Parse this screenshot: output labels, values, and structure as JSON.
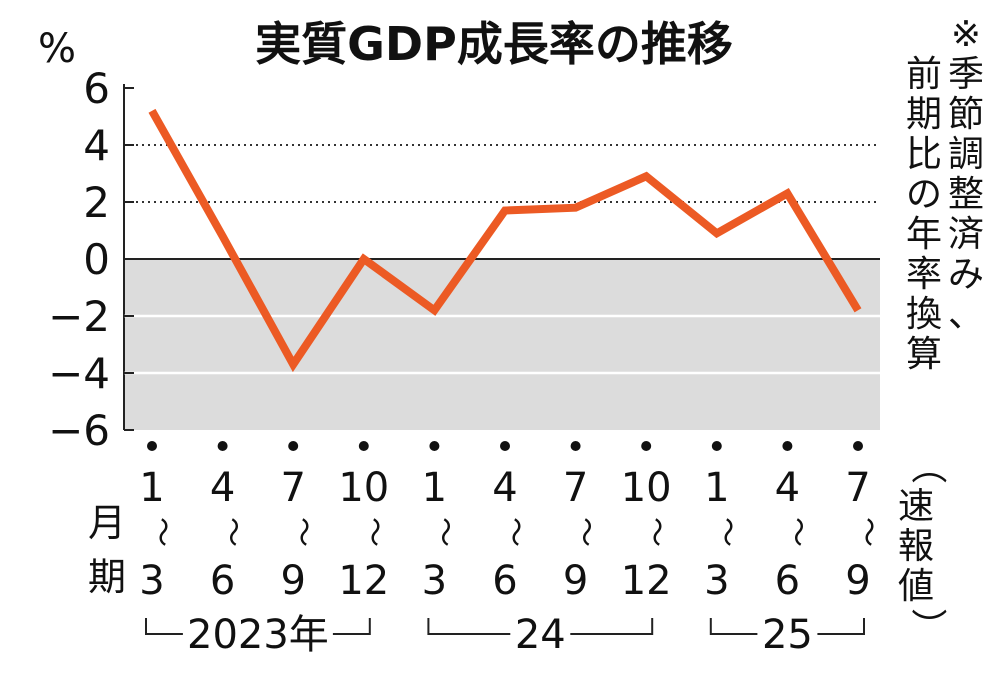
{
  "chart_data": {
    "type": "line",
    "title": "実質GDP成長率の推移",
    "unit_label": "%",
    "ylim": [
      -6,
      6
    ],
    "y_ticks": [
      "6",
      "4",
      "2",
      "0",
      "−2",
      "−4",
      "−6"
    ],
    "grid": "dotted lines at 2 and 4; solid lines at negative values; shaded area below 0",
    "x_axis_prefix": [
      "月",
      "期"
    ],
    "tilde": "～",
    "categories": [
      {
        "start": "1",
        "end": "3"
      },
      {
        "start": "4",
        "end": "6"
      },
      {
        "start": "7",
        "end": "9"
      },
      {
        "start": "10",
        "end": "12"
      },
      {
        "start": "1",
        "end": "3"
      },
      {
        "start": "4",
        "end": "6"
      },
      {
        "start": "7",
        "end": "9"
      },
      {
        "start": "10",
        "end": "12"
      },
      {
        "start": "1",
        "end": "3"
      },
      {
        "start": "4",
        "end": "6"
      },
      {
        "start": "7",
        "end": "9"
      }
    ],
    "year_groups": [
      {
        "label": "2023年",
        "from": 0,
        "to": 3
      },
      {
        "label": "24",
        "from": 4,
        "to": 7
      },
      {
        "label": "25",
        "from": 8,
        "to": 10
      }
    ],
    "series": [
      {
        "values": [
          5.2,
          0.8,
          -3.7,
          0.0,
          -1.8,
          1.7,
          1.8,
          2.9,
          0.9,
          2.3,
          -1.8
        ]
      }
    ],
    "line_color": "#ec5a24",
    "shade_color": "#dcdcdc",
    "note": "※季節調整済み、前期比の年率換算",
    "flash_label": "（速報値）"
  }
}
